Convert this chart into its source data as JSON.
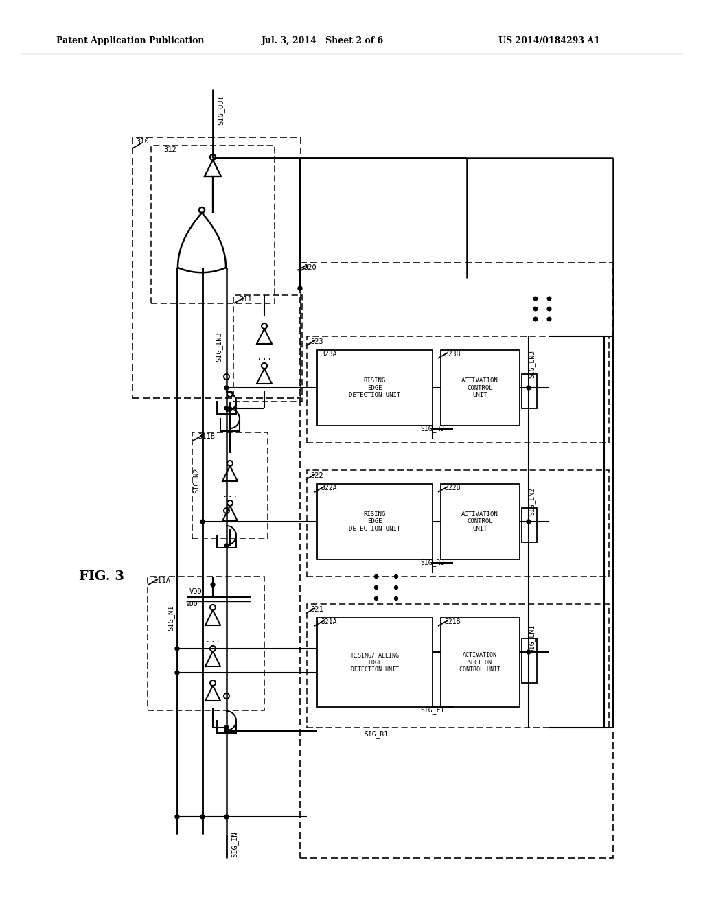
{
  "bg_color": "#ffffff",
  "header_left": "Patent Application Publication",
  "header_mid": "Jul. 3, 2014   Sheet 2 of 6",
  "header_right": "US 2014/0184293 A1",
  "fig_label": "FIG. 3"
}
